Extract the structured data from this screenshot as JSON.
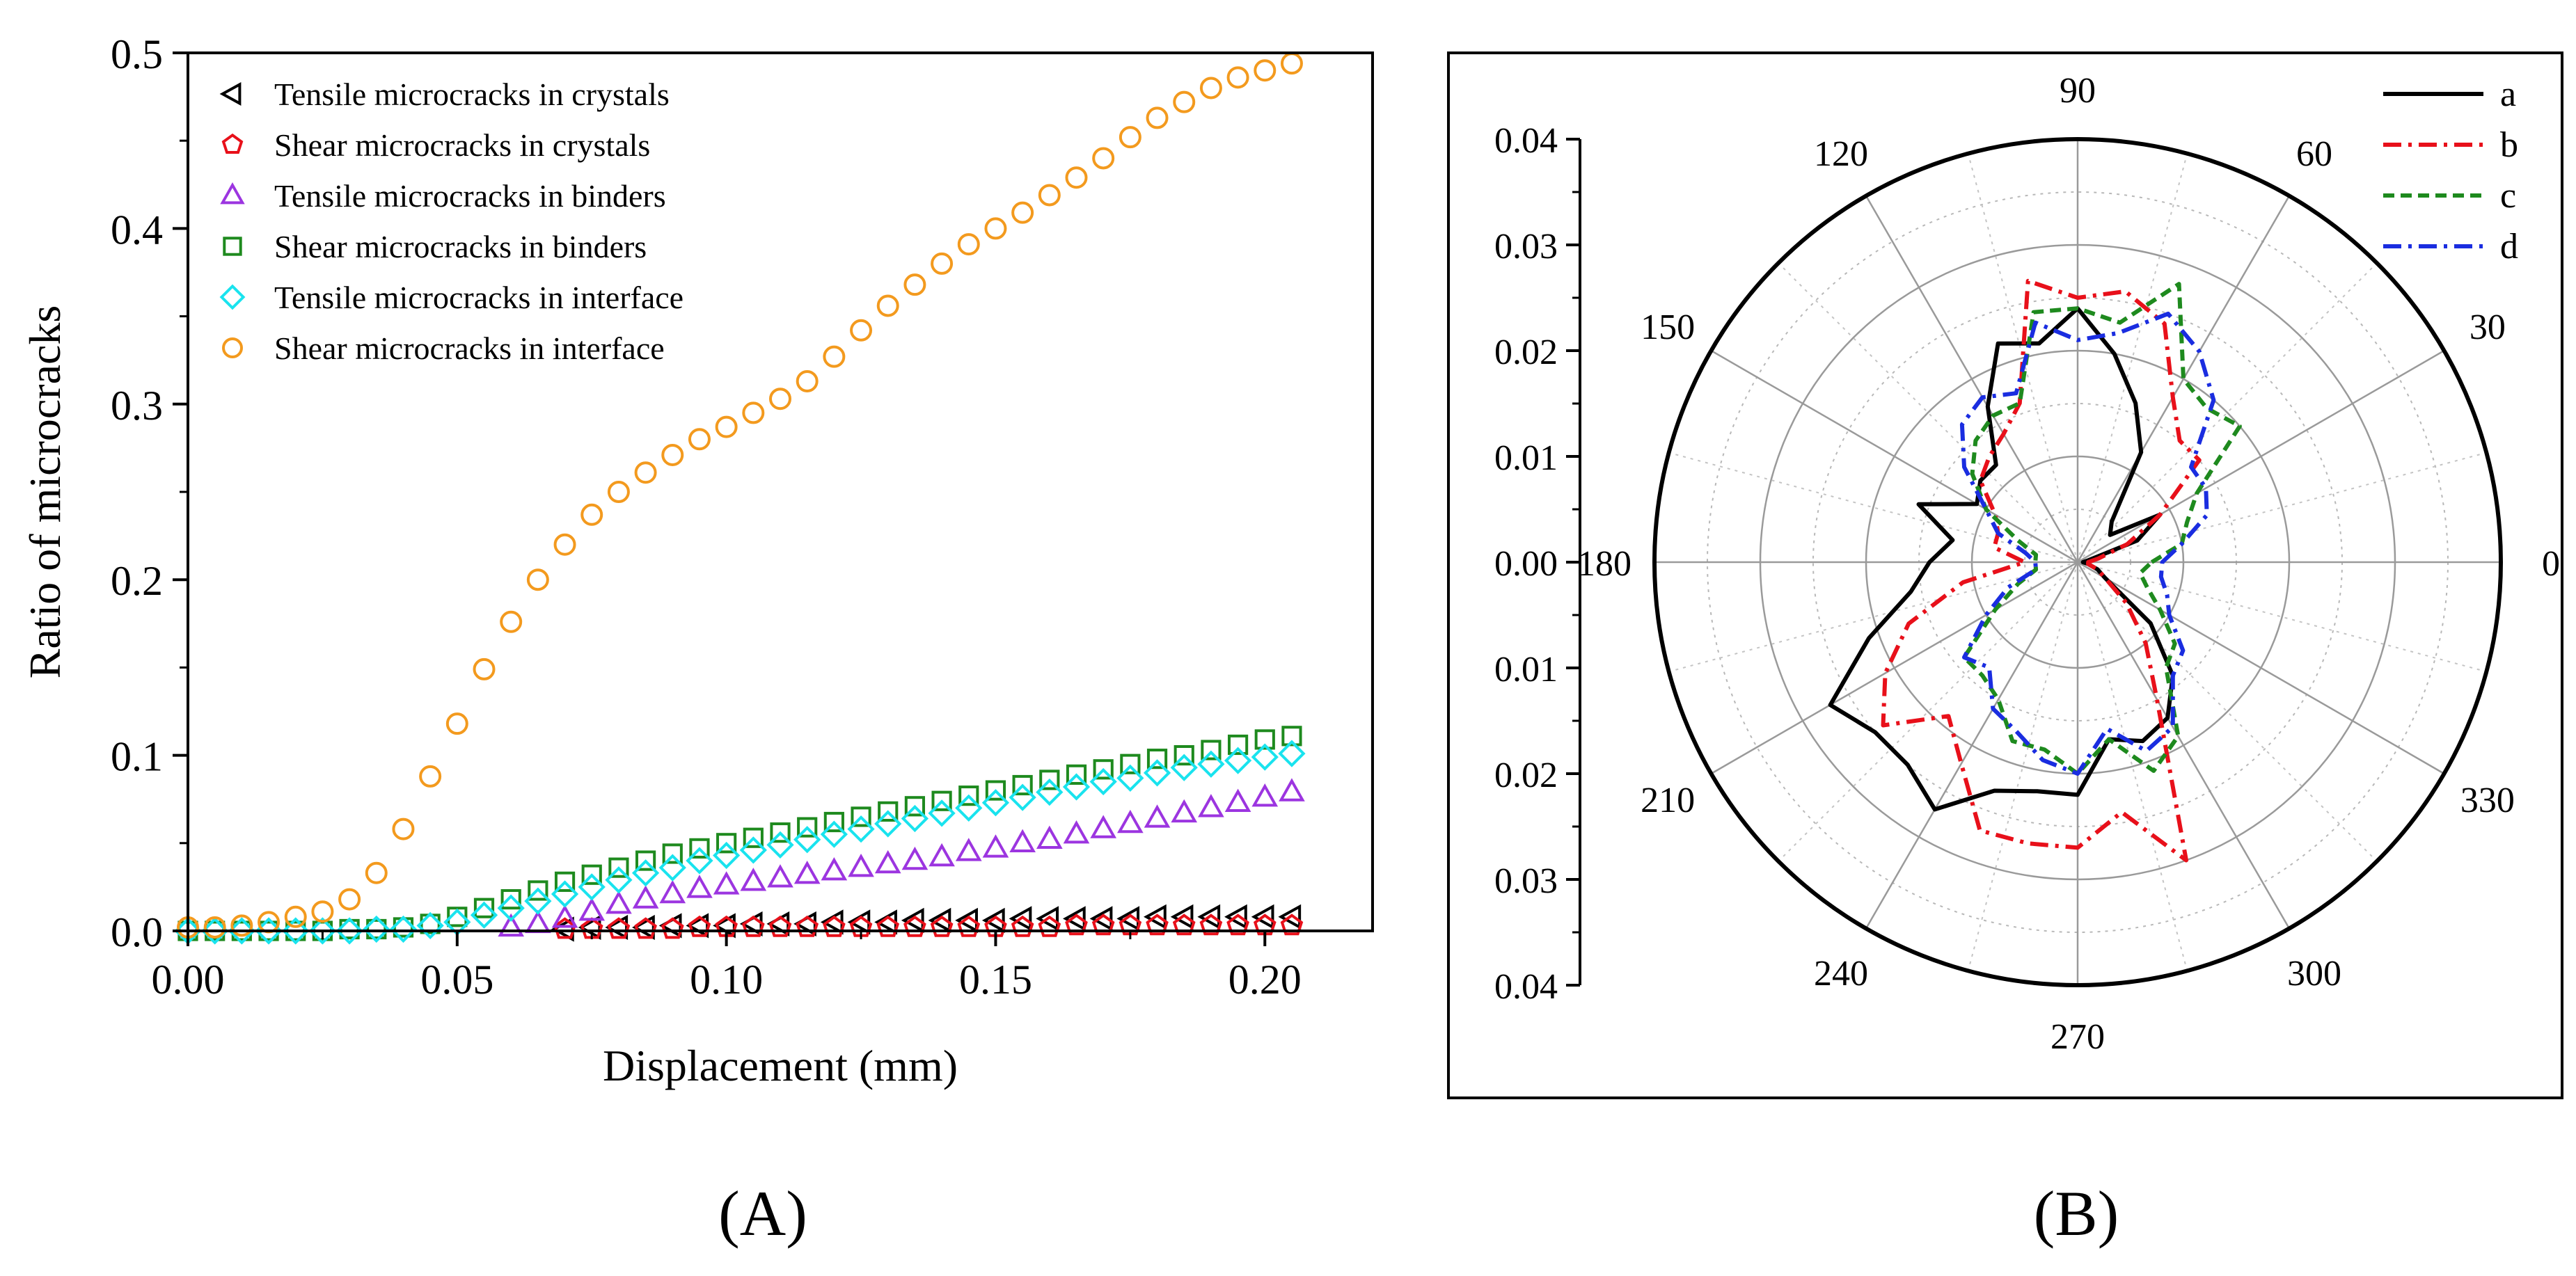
{
  "panel_labels": {
    "left": "(A)",
    "right": "(B)"
  },
  "colors": {
    "tensile_crystals": "#000000",
    "shear_crystals": "#e8101a",
    "tensile_binders": "#9c35e0",
    "shear_binders": "#1e8a1e",
    "tensile_interface": "#19e3ee",
    "shear_interface": "#f39a1e",
    "polar_a": "#000000",
    "polar_b": "#e8101a",
    "polar_c": "#1e8a1e",
    "polar_d": "#1a2de0"
  },
  "chart_data": [
    {
      "type": "scatter",
      "title": "",
      "xlabel": "Displacement (mm)",
      "ylabel": "Ratio of microcracks",
      "xlim": [
        0,
        0.22
      ],
      "ylim": [
        0,
        0.5
      ],
      "xticks": [
        0.0,
        0.05,
        0.1,
        0.15,
        0.2
      ],
      "xtick_labels": [
        "0.00",
        "0.05",
        "0.10",
        "0.15",
        "0.20"
      ],
      "yticks": [
        0.0,
        0.1,
        0.2,
        0.3,
        0.4,
        0.5
      ],
      "ytick_labels": [
        "0.0",
        "0.1",
        "0.2",
        "0.3",
        "0.4",
        "0.5"
      ],
      "legend_position": "top-left",
      "series": [
        {
          "name": "Tensile microcracks in crystals",
          "marker": "triangle-left",
          "color": "#000000",
          "x": [
            0.07,
            0.075,
            0.08,
            0.085,
            0.09,
            0.095,
            0.1,
            0.105,
            0.11,
            0.115,
            0.12,
            0.125,
            0.13,
            0.135,
            0.14,
            0.145,
            0.15,
            0.155,
            0.16,
            0.165,
            0.17,
            0.175,
            0.18,
            0.185,
            0.19,
            0.195,
            0.2,
            0.205
          ],
          "y": [
            0.001,
            0.002,
            0.002,
            0.002,
            0.003,
            0.003,
            0.003,
            0.004,
            0.004,
            0.004,
            0.005,
            0.005,
            0.005,
            0.006,
            0.006,
            0.006,
            0.006,
            0.007,
            0.007,
            0.007,
            0.007,
            0.007,
            0.008,
            0.008,
            0.008,
            0.008,
            0.008,
            0.008
          ]
        },
        {
          "name": "Shear microcracks in crystals",
          "marker": "pentagon",
          "color": "#e8101a",
          "x": [
            0.07,
            0.075,
            0.08,
            0.085,
            0.09,
            0.095,
            0.1,
            0.105,
            0.11,
            0.115,
            0.12,
            0.125,
            0.13,
            0.135,
            0.14,
            0.145,
            0.15,
            0.155,
            0.16,
            0.165,
            0.17,
            0.175,
            0.18,
            0.185,
            0.19,
            0.195,
            0.2,
            0.205
          ],
          "y": [
            0.001,
            0.001,
            0.001,
            0.001,
            0.001,
            0.002,
            0.002,
            0.002,
            0.002,
            0.002,
            0.002,
            0.002,
            0.002,
            0.002,
            0.002,
            0.002,
            0.002,
            0.002,
            0.002,
            0.003,
            0.003,
            0.003,
            0.003,
            0.003,
            0.003,
            0.003,
            0.003,
            0.003
          ]
        },
        {
          "name": "Tensile microcracks in binders",
          "marker": "triangle-up",
          "color": "#9c35e0",
          "x": [
            0.06,
            0.065,
            0.07,
            0.075,
            0.08,
            0.085,
            0.09,
            0.095,
            0.1,
            0.105,
            0.11,
            0.115,
            0.12,
            0.125,
            0.13,
            0.135,
            0.14,
            0.145,
            0.15,
            0.155,
            0.16,
            0.165,
            0.17,
            0.175,
            0.18,
            0.185,
            0.19,
            0.195,
            0.2,
            0.205
          ],
          "y": [
            0.002,
            0.004,
            0.007,
            0.011,
            0.015,
            0.018,
            0.021,
            0.024,
            0.026,
            0.028,
            0.03,
            0.032,
            0.034,
            0.036,
            0.038,
            0.04,
            0.042,
            0.045,
            0.047,
            0.05,
            0.052,
            0.055,
            0.058,
            0.061,
            0.064,
            0.067,
            0.07,
            0.073,
            0.076,
            0.079
          ]
        },
        {
          "name": "Shear microcracks in binders",
          "marker": "square",
          "color": "#1e8a1e",
          "x": [
            0.0,
            0.005,
            0.01,
            0.015,
            0.02,
            0.025,
            0.03,
            0.035,
            0.04,
            0.045,
            0.05,
            0.055,
            0.06,
            0.065,
            0.07,
            0.075,
            0.08,
            0.085,
            0.09,
            0.095,
            0.1,
            0.105,
            0.11,
            0.115,
            0.12,
            0.125,
            0.13,
            0.135,
            0.14,
            0.145,
            0.15,
            0.155,
            0.16,
            0.165,
            0.17,
            0.175,
            0.18,
            0.185,
            0.19,
            0.195,
            0.2,
            0.205
          ],
          "y": [
            0.0,
            0.0,
            0.0,
            0.0,
            0.0,
            0.0,
            0.001,
            0.001,
            0.002,
            0.004,
            0.008,
            0.013,
            0.018,
            0.023,
            0.028,
            0.032,
            0.036,
            0.04,
            0.044,
            0.047,
            0.05,
            0.053,
            0.056,
            0.059,
            0.062,
            0.065,
            0.068,
            0.071,
            0.074,
            0.077,
            0.08,
            0.083,
            0.086,
            0.089,
            0.092,
            0.095,
            0.098,
            0.1,
            0.103,
            0.106,
            0.109,
            0.111
          ]
        },
        {
          "name": "Tensile microcracks in interface",
          "marker": "diamond",
          "color": "#19e3ee",
          "x": [
            0.0,
            0.005,
            0.01,
            0.015,
            0.02,
            0.025,
            0.03,
            0.035,
            0.04,
            0.045,
            0.05,
            0.055,
            0.06,
            0.065,
            0.07,
            0.075,
            0.08,
            0.085,
            0.09,
            0.095,
            0.1,
            0.105,
            0.11,
            0.115,
            0.12,
            0.125,
            0.13,
            0.135,
            0.14,
            0.145,
            0.15,
            0.155,
            0.16,
            0.165,
            0.17,
            0.175,
            0.18,
            0.185,
            0.19,
            0.195,
            0.2,
            0.205
          ],
          "y": [
            0.0,
            0.0,
            0.0,
            0.0,
            0.0,
            0.0,
            0.0,
            0.001,
            0.001,
            0.003,
            0.005,
            0.009,
            0.013,
            0.017,
            0.021,
            0.025,
            0.029,
            0.033,
            0.036,
            0.04,
            0.043,
            0.046,
            0.049,
            0.052,
            0.055,
            0.058,
            0.061,
            0.064,
            0.067,
            0.07,
            0.073,
            0.076,
            0.079,
            0.082,
            0.085,
            0.087,
            0.09,
            0.093,
            0.095,
            0.097,
            0.099,
            0.101
          ]
        },
        {
          "name": "Shear microcracks in interface",
          "marker": "circle",
          "color": "#f39a1e",
          "x": [
            0.0,
            0.005,
            0.01,
            0.015,
            0.02,
            0.025,
            0.03,
            0.035,
            0.04,
            0.045,
            0.05,
            0.055,
            0.06,
            0.065,
            0.07,
            0.075,
            0.08,
            0.085,
            0.09,
            0.095,
            0.1,
            0.105,
            0.11,
            0.115,
            0.12,
            0.125,
            0.13,
            0.135,
            0.14,
            0.145,
            0.15,
            0.155,
            0.16,
            0.165,
            0.17,
            0.175,
            0.18,
            0.185,
            0.19,
            0.195,
            0.2,
            0.205
          ],
          "y": [
            0.002,
            0.002,
            0.003,
            0.005,
            0.008,
            0.011,
            0.018,
            0.033,
            0.058,
            0.088,
            0.118,
            0.149,
            0.176,
            0.2,
            0.22,
            0.237,
            0.25,
            0.261,
            0.271,
            0.28,
            0.287,
            0.295,
            0.303,
            0.313,
            0.327,
            0.342,
            0.356,
            0.368,
            0.38,
            0.391,
            0.4,
            0.409,
            0.419,
            0.429,
            0.44,
            0.452,
            0.463,
            0.472,
            0.48,
            0.486,
            0.49,
            0.494
          ]
        }
      ]
    },
    {
      "type": "line",
      "subtype": "polar",
      "title": "",
      "radial_range": [
        0,
        0.04
      ],
      "radial_ticks": [
        0.0,
        0.01,
        0.02,
        0.03,
        0.04
      ],
      "radial_tick_labels_top": [
        "0.04",
        "0.03",
        "0.02",
        "0.01",
        "0.00"
      ],
      "radial_tick_labels_bottom": [
        "0.01",
        "0.02",
        "0.03",
        "0.04"
      ],
      "angle_labels": [
        "0",
        "30",
        "60",
        "90",
        "120",
        "150",
        "180",
        "210",
        "240",
        "270",
        "300",
        "330"
      ],
      "grid": true,
      "legend_position": "top-right",
      "series": [
        {
          "name": "a",
          "style": "solid",
          "color": "#000000",
          "angles": [
            0,
            10,
            20,
            30,
            40,
            50,
            60,
            70,
            80,
            90,
            100,
            110,
            120,
            130,
            140,
            150,
            160,
            170,
            180,
            190,
            200,
            210,
            220,
            230,
            240,
            250,
            260,
            270,
            280,
            290,
            300,
            310,
            320,
            330,
            340,
            350
          ],
          "r": [
            0.0005,
            0.001,
            0.006,
            0.009,
            0.004,
            0.005,
            0.012,
            0.016,
            0.02,
            0.024,
            0.021,
            0.022,
            0.017,
            0.012,
            0.012,
            0.011,
            0.016,
            0.012,
            0.014,
            0.016,
            0.021,
            0.027,
            0.025,
            0.025,
            0.027,
            0.023,
            0.022,
            0.022,
            0.017,
            0.018,
            0.017,
            0.014,
            0.009,
            0.003,
            0.002,
            0.001
          ]
        },
        {
          "name": "b",
          "style": "dash-dot",
          "color": "#e8101a",
          "angles": [
            0,
            10,
            20,
            30,
            40,
            50,
            60,
            70,
            80,
            90,
            100,
            110,
            120,
            130,
            140,
            150,
            160,
            170,
            180,
            190,
            200,
            210,
            220,
            230,
            240,
            250,
            260,
            270,
            280,
            290,
            300,
            310,
            320,
            330,
            340,
            350
          ],
          "r": [
            0.001,
            0.002,
            0.005,
            0.009,
            0.015,
            0.015,
            0.018,
            0.024,
            0.026,
            0.025,
            0.027,
            0.016,
            0.014,
            0.013,
            0.012,
            0.009,
            0.008,
            0.008,
            0.005,
            0.011,
            0.017,
            0.021,
            0.024,
            0.019,
            0.022,
            0.027,
            0.027,
            0.027,
            0.024,
            0.03,
            0.015,
            0.01,
            0.006,
            0.003,
            0.002,
            0.001
          ]
        },
        {
          "name": "c",
          "style": "dash",
          "color": "#1e8a1e",
          "angles": [
            0,
            10,
            20,
            30,
            40,
            50,
            60,
            70,
            80,
            90,
            100,
            110,
            120,
            130,
            140,
            150,
            160,
            170,
            180,
            190,
            200,
            210,
            220,
            230,
            240,
            250,
            260,
            270,
            280,
            290,
            300,
            310,
            320,
            330,
            340,
            350
          ],
          "r": [
            0.007,
            0.01,
            0.011,
            0.013,
            0.02,
            0.019,
            0.02,
            0.028,
            0.023,
            0.024,
            0.024,
            0.016,
            0.016,
            0.015,
            0.013,
            0.01,
            0.006,
            0.004,
            0.004,
            0.004,
            0.006,
            0.009,
            0.014,
            0.014,
            0.015,
            0.018,
            0.018,
            0.02,
            0.017,
            0.021,
            0.019,
            0.013,
            0.012,
            0.009,
            0.007,
            0.006
          ]
        },
        {
          "name": "d",
          "style": "dash-dot",
          "color": "#1a2de0",
          "angles": [
            0,
            10,
            20,
            30,
            40,
            50,
            60,
            70,
            80,
            90,
            100,
            110,
            120,
            130,
            140,
            150,
            160,
            170,
            180,
            190,
            200,
            210,
            220,
            230,
            240,
            250,
            260,
            270,
            280,
            290,
            300,
            310,
            320,
            330,
            340,
            350
          ],
          "r": [
            0.008,
            0.01,
            0.013,
            0.014,
            0.014,
            0.02,
            0.023,
            0.025,
            0.022,
            0.021,
            0.023,
            0.017,
            0.018,
            0.017,
            0.014,
            0.01,
            0.008,
            0.005,
            0.004,
            0.004,
            0.007,
            0.01,
            0.014,
            0.013,
            0.016,
            0.017,
            0.019,
            0.02,
            0.016,
            0.019,
            0.018,
            0.014,
            0.013,
            0.01,
            0.009,
            0.008
          ]
        }
      ]
    }
  ]
}
